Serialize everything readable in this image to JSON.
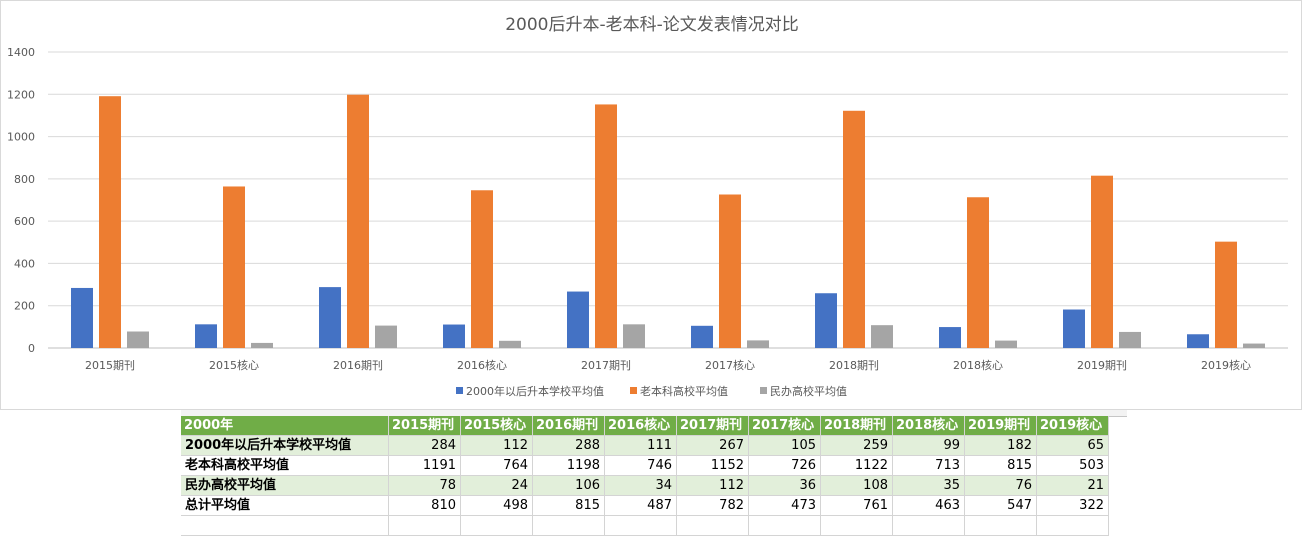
{
  "chart_data": {
    "type": "bar",
    "title": "2000后升本-老本科-论文发表情况对比",
    "categories": [
      "2015期刊",
      "2015核心",
      "2016期刊",
      "2016核心",
      "2017期刊",
      "2017核心",
      "2018期刊",
      "2018核心",
      "2019期刊",
      "2019核心"
    ],
    "series": [
      {
        "name": "2000年以后升本学校平均值",
        "color": "#4472c4",
        "values": [
          284,
          112,
          288,
          111,
          267,
          105,
          259,
          99,
          182,
          65
        ]
      },
      {
        "name": "老本科高校平均值",
        "color": "#ed7d31",
        "values": [
          1191,
          764,
          1198,
          746,
          1152,
          726,
          1122,
          713,
          815,
          503
        ]
      },
      {
        "name": "民办高校平均值",
        "color": "#a5a5a5",
        "values": [
          78,
          24,
          106,
          34,
          112,
          36,
          108,
          35,
          76,
          21
        ]
      }
    ],
    "ylim": [
      0,
      1400
    ],
    "yticks": [
      0,
      200,
      400,
      600,
      800,
      1000,
      1200,
      1400
    ],
    "grid": true,
    "legend_position": "bottom"
  },
  "sheet": {
    "header": [
      "2000年",
      "2015期刊",
      "2015核心",
      "2016期刊",
      "2016核心",
      "2017期刊",
      "2017核心",
      "2018期刊",
      "2018核心",
      "2019期刊",
      "2019核心"
    ],
    "rows": [
      {
        "label": "2000年以后升本学校平均值",
        "values": [
          284,
          112,
          288,
          111,
          267,
          105,
          259,
          99,
          182,
          65
        ]
      },
      {
        "label": "老本科高校平均值",
        "values": [
          1191,
          764,
          1198,
          746,
          1152,
          726,
          1122,
          713,
          815,
          503
        ]
      },
      {
        "label": "民办高校平均值",
        "values": [
          78,
          24,
          106,
          34,
          112,
          36,
          108,
          35,
          76,
          21
        ]
      },
      {
        "label": "总计平均值",
        "values": [
          810,
          498,
          815,
          487,
          782,
          473,
          761,
          463,
          547,
          322
        ]
      }
    ],
    "band_color": "#e2efda",
    "header_color": "#70ad47"
  }
}
